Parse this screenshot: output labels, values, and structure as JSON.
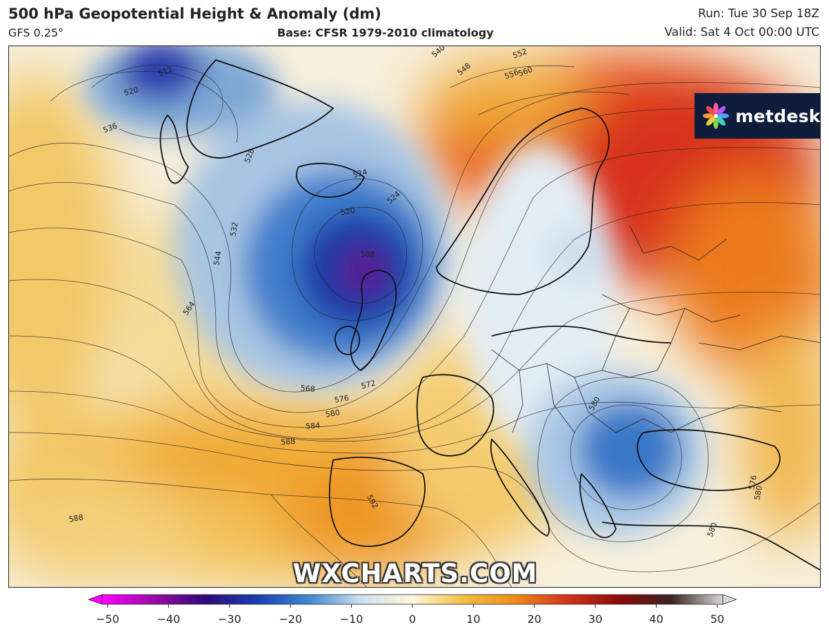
{
  "header": {
    "title": "500 hPa Geopotential Height & Anomaly (dm)",
    "model": "GFS 0.25°",
    "base": "Base: CFSR 1979-2010 climatology",
    "run": "Run: Tue 30 Sep 18Z",
    "valid": "Valid: Sat 4 Oct 00:00 UTC"
  },
  "branding": {
    "logo_text": "metdesk",
    "watermark": "WXCHARTS.COM",
    "logo_bg": "#101c3c"
  },
  "colorbar": {
    "ticks": [
      "−50",
      "−40",
      "−30",
      "−20",
      "−10",
      "0",
      "10",
      "20",
      "30",
      "40",
      "50"
    ],
    "stops": [
      "#ff00ff",
      "#9b0aa6",
      "#2e0a7c",
      "#1b3fb2",
      "#3f88d2",
      "#cfe0ee",
      "#fff6dc",
      "#f0c040",
      "#ee8a1c",
      "#d2331a",
      "#8c0a0a",
      "#3a2222",
      "#d8d8d8"
    ]
  },
  "chart_data": {
    "type": "heatmap",
    "title": "500 hPa Geopotential Height & Anomaly (dm)",
    "variable": "geopotential height anomaly",
    "units": "dm",
    "colorbar_range": [
      -50,
      50
    ],
    "colorbar_ticks": [
      -50,
      -40,
      -30,
      -20,
      -10,
      0,
      10,
      20,
      30,
      40,
      50
    ],
    "contour_labels": [
      "512",
      "520",
      "536",
      "528",
      "524",
      "524",
      "520",
      "508",
      "532",
      "544",
      "564",
      "540",
      "548",
      "552",
      "556",
      "560",
      "568",
      "572",
      "576",
      "580",
      "584",
      "588",
      "592",
      "588",
      "580",
      "576",
      "580",
      "580"
    ],
    "features": [
      {
        "name": "trough",
        "location": "south of Iceland / north of Scotland",
        "anomaly": -35
      },
      {
        "name": "trough",
        "location": "Balkans / Greece",
        "anomaly": -20
      },
      {
        "name": "ridge",
        "location": "Scandinavia / north-west Russia",
        "anomaly": 25
      },
      {
        "name": "ridge",
        "location": "Iberia / eastern Atlantic",
        "anomaly": 15
      }
    ]
  }
}
